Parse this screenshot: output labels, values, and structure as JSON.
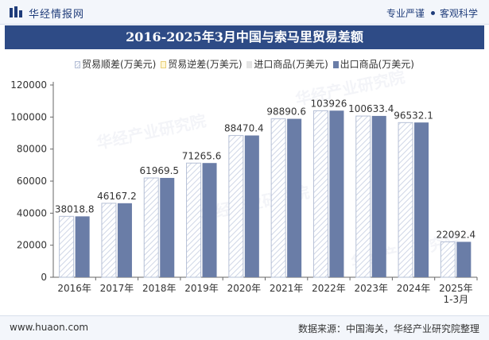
{
  "header": {
    "site_name": "华经情报网",
    "slogan_left": "专业严谨",
    "slogan_right": "客观科学"
  },
  "watermark": "华经产业研究院",
  "chart_data": {
    "type": "bar",
    "title": "2016-2025年3月中国与索马里贸易差额",
    "categories": [
      "2016年",
      "2017年",
      "2018年",
      "2019年",
      "2020年",
      "2021年",
      "2022年",
      "2023年",
      "2024年",
      "2025年\n1-3月"
    ],
    "legend": [
      "贸易顺差(万美元)",
      "贸易逆差(万美元)",
      "进口商品(万美元)",
      "出口商品(万美元)"
    ],
    "series": [
      {
        "name": "贸易顺差(万美元)",
        "values": [
          38018.8,
          46167.2,
          61969.5,
          71265.6,
          88470.4,
          98890.6,
          103926,
          100633.4,
          96532.1,
          22092.4
        ]
      },
      {
        "name": "贸易逆差(万美元)",
        "values": [
          0,
          0,
          0,
          0,
          0,
          0,
          0,
          0,
          0,
          0
        ]
      },
      {
        "name": "进口商品(万美元)",
        "values": [
          0,
          0,
          0,
          0,
          0,
          0,
          0,
          0,
          0,
          0
        ]
      },
      {
        "name": "出口商品(万美元)",
        "values": [
          38000,
          46200,
          62000,
          71300,
          88500,
          98900,
          104000,
          100700,
          96600,
          22100
        ]
      }
    ],
    "data_labels": [
      "38018.8",
      "46167.2",
      "61969.5",
      "71265.6",
      "88470.4",
      "98890.6",
      "103926",
      "100633.4",
      "96532.1",
      "22092.4"
    ],
    "yticks": [
      "0",
      "20000",
      "40000",
      "60000",
      "80000",
      "100000",
      "120000"
    ],
    "ylim": [
      0,
      120000
    ],
    "xlabel": "",
    "ylabel": "",
    "grid": false,
    "legend_position": "top-center",
    "colors": {
      "surplus_stripe": "#cfd6e6",
      "surplus_edge": "#b6c0d6",
      "deficit": "#fff7d6",
      "import": "#e4e4e4",
      "export": "#6a7da7"
    }
  },
  "footer": {
    "url": "www.huaon.com",
    "source": "数据来源：中国海关，华经产业研究院整理"
  }
}
